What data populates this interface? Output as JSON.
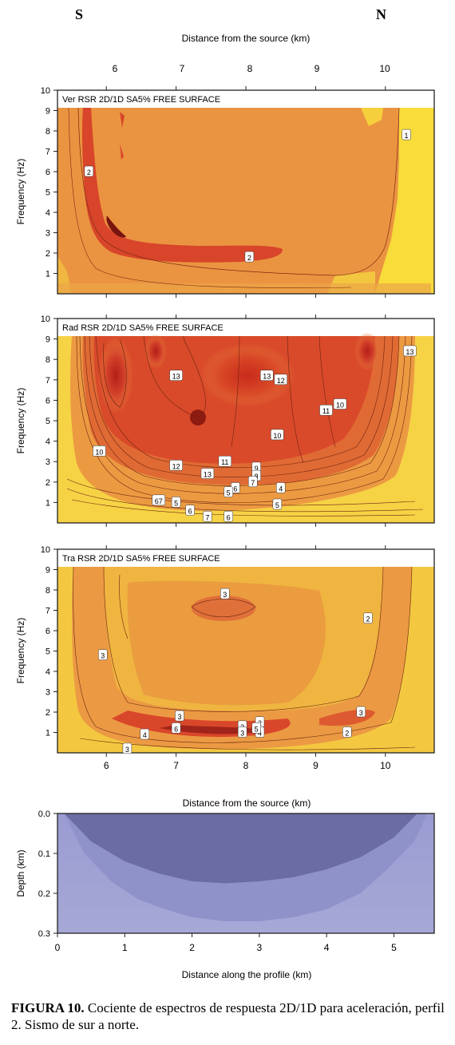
{
  "header": {
    "south_label": "S",
    "north_label": "N"
  },
  "top_axis": {
    "label": "Distance from the source (km)",
    "ticks": [
      6,
      7,
      8,
      9,
      10
    ]
  },
  "panels": [
    {
      "title": "Ver RSR 2D/1D SA5% FREE SURFACE",
      "ylabel": "Frequency (Hz)",
      "contour_labels": [
        "2",
        "2",
        "1"
      ]
    },
    {
      "title": "Rad RSR 2D/1D SA5% FREE SURFACE",
      "ylabel": "Frequency (Hz)",
      "contour_labels": [
        "13",
        "13",
        "12",
        "11",
        "10",
        "10",
        "10",
        "12",
        "13",
        "11",
        "9",
        "8",
        "7",
        "6",
        "5",
        "4",
        "5",
        "67",
        "5",
        "6",
        "7",
        "6",
        "13"
      ]
    },
    {
      "title": "Tra RSR 2D/1D SA5% FREE SURFACE",
      "ylabel": "Frequency (Hz)",
      "contour_labels": [
        "3",
        "3",
        "2",
        "3",
        "4",
        "6",
        "3",
        "3",
        "2",
        "4",
        "5",
        "3",
        "3",
        "2"
      ]
    }
  ],
  "depth_panel": {
    "ylabel": "Depth (km)",
    "xlabel": "Distance along the profile (km)",
    "top_label": "Distance from the source (km)"
  },
  "caption": {
    "figure_number": "FIGURA 10.",
    "text": "Cociente de espectros de respuesta 2D/1D para aceleración, perfil 2. Sismo de sur a norte."
  },
  "chart_data": [
    {
      "type": "heatmap",
      "title": "Ver RSR 2D/1D SA5% FREE SURFACE",
      "xlabel": "Distance from the source (km)",
      "ylabel": "Frequency (Hz)",
      "xlim": [
        5.3,
        10.7
      ],
      "ylim": [
        0,
        10
      ],
      "xticks": [
        6,
        7,
        8,
        9,
        10
      ],
      "yticks": [
        1,
        2,
        3,
        4,
        5,
        6,
        7,
        8,
        9,
        10
      ],
      "contour_labels": [
        {
          "x": 5.75,
          "y": 6.0,
          "value": 2
        },
        {
          "x": 8.05,
          "y": 1.8,
          "value": 2
        },
        {
          "x": 10.3,
          "y": 7.8,
          "value": 1
        }
      ]
    },
    {
      "type": "heatmap",
      "title": "Rad RSR 2D/1D SA5% FREE SURFACE",
      "xlabel": "Distance from the source (km)",
      "ylabel": "Frequency (Hz)",
      "xlim": [
        5.3,
        10.7
      ],
      "ylim": [
        0,
        10
      ],
      "xticks": [
        6,
        7,
        8,
        9,
        10
      ],
      "yticks": [
        1,
        2,
        3,
        4,
        5,
        6,
        7,
        8,
        9,
        10
      ],
      "contour_labels": [
        {
          "x": 7.0,
          "y": 7.2,
          "value": 13
        },
        {
          "x": 8.3,
          "y": 7.2,
          "value": 13
        },
        {
          "x": 8.5,
          "y": 7.0,
          "value": 12
        },
        {
          "x": 9.15,
          "y": 5.5,
          "value": 11
        },
        {
          "x": 9.35,
          "y": 5.8,
          "value": 10
        },
        {
          "x": 5.9,
          "y": 3.5,
          "value": 10
        },
        {
          "x": 8.45,
          "y": 4.3,
          "value": 10
        },
        {
          "x": 7.0,
          "y": 2.8,
          "value": 12
        },
        {
          "x": 7.45,
          "y": 2.4,
          "value": 13
        },
        {
          "x": 7.7,
          "y": 3.0,
          "value": 11
        },
        {
          "x": 8.15,
          "y": 2.7,
          "value": 9
        },
        {
          "x": 8.15,
          "y": 2.3,
          "value": 8
        },
        {
          "x": 8.1,
          "y": 2.0,
          "value": 7
        },
        {
          "x": 7.85,
          "y": 1.7,
          "value": 6
        },
        {
          "x": 7.75,
          "y": 1.5,
          "value": 5
        },
        {
          "x": 8.5,
          "y": 1.7,
          "value": 4
        },
        {
          "x": 8.45,
          "y": 0.9,
          "value": 5
        },
        {
          "x": 6.75,
          "y": 1.1,
          "value": 67
        },
        {
          "x": 7.0,
          "y": 1.0,
          "value": 5
        },
        {
          "x": 7.2,
          "y": 0.6,
          "value": 6
        },
        {
          "x": 7.45,
          "y": 0.3,
          "value": 7
        },
        {
          "x": 7.75,
          "y": 0.3,
          "value": 6
        },
        {
          "x": 10.35,
          "y": 8.4,
          "value": 13
        }
      ]
    },
    {
      "type": "heatmap",
      "title": "Tra RSR 2D/1D SA5% FREE SURFACE",
      "xlabel": "Distance from the source (km)",
      "ylabel": "Frequency (Hz)",
      "xlim": [
        5.3,
        10.7
      ],
      "ylim": [
        0,
        10
      ],
      "xticks": [
        6,
        7,
        8,
        9,
        10
      ],
      "yticks": [
        1,
        2,
        3,
        4,
        5,
        6,
        7,
        8,
        9,
        10
      ],
      "contour_labels": [
        {
          "x": 7.7,
          "y": 7.8,
          "value": 3
        },
        {
          "x": 5.95,
          "y": 4.8,
          "value": 3
        },
        {
          "x": 9.75,
          "y": 6.6,
          "value": 2
        },
        {
          "x": 7.05,
          "y": 1.8,
          "value": 3
        },
        {
          "x": 6.55,
          "y": 0.9,
          "value": 4
        },
        {
          "x": 7.0,
          "y": 1.2,
          "value": 6
        },
        {
          "x": 7.95,
          "y": 1.3,
          "value": 3
        },
        {
          "x": 7.95,
          "y": 1.0,
          "value": 3
        },
        {
          "x": 8.2,
          "y": 1.5,
          "value": 2
        },
        {
          "x": 8.2,
          "y": 1.0,
          "value": 4
        },
        {
          "x": 8.15,
          "y": 1.2,
          "value": 5
        },
        {
          "x": 9.65,
          "y": 2.0,
          "value": 3
        },
        {
          "x": 6.3,
          "y": 0.2,
          "value": 3
        },
        {
          "x": 9.45,
          "y": 1.0,
          "value": 2
        }
      ]
    },
    {
      "type": "area",
      "xlabel": "Distance along the profile (km)",
      "ylabel": "Depth (km)",
      "xlim": [
        0,
        5.6
      ],
      "ylim": [
        0.3,
        0.0
      ],
      "xticks": [
        0,
        1,
        2,
        3,
        4,
        5
      ],
      "yticks": [
        0.0,
        0.1,
        0.2,
        0.3
      ],
      "series": [
        {
          "x": [
            0.1,
            0.5,
            1.0,
            1.5,
            2.0,
            2.5,
            3.0,
            3.5,
            4.0,
            4.5,
            5.0,
            5.35
          ],
          "values": [
            0.0,
            0.07,
            0.12,
            0.15,
            0.17,
            0.175,
            0.17,
            0.16,
            0.14,
            0.11,
            0.06,
            0.0
          ]
        },
        {
          "x": [
            0.1,
            0.4,
            0.8,
            1.2,
            1.6,
            2.0,
            2.5,
            3.0,
            3.5,
            4.0,
            4.5,
            4.9,
            5.3,
            5.5
          ],
          "values": [
            0.0,
            0.1,
            0.17,
            0.215,
            0.24,
            0.26,
            0.27,
            0.27,
            0.26,
            0.24,
            0.2,
            0.14,
            0.07,
            0.0
          ]
        }
      ]
    }
  ]
}
